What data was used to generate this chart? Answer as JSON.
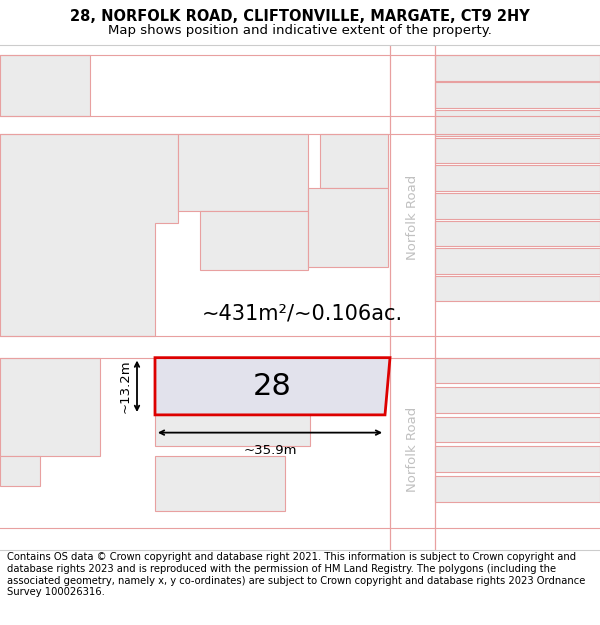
{
  "title_line1": "28, NORFOLK ROAD, CLIFTONVILLE, MARGATE, CT9 2HY",
  "title_line2": "Map shows position and indicative extent of the property.",
  "footer_text": "Contains OS data © Crown copyright and database right 2021. This information is subject to Crown copyright and database rights 2023 and is reproduced with the permission of HM Land Registry. The polygons (including the associated geometry, namely x, y co-ordinates) are subject to Crown copyright and database rights 2023 Ordnance Survey 100026316.",
  "bg_color": "#f2f2f2",
  "road_color": "#ffffff",
  "building_fill": "#ebebeb",
  "building_outline": "#e8a0a0",
  "highlight_fill": "#e2e2ec",
  "highlight_outline": "#dd0000",
  "area_text": "~431m²/~0.106ac.",
  "label_28": "28",
  "dim_width": "~35.9m",
  "dim_height": "~13.2m",
  "norfolk_road_text": "Norfolk Road",
  "road_label_color": "#c0c0c0",
  "title_fontsize": 10.5,
  "subtitle_fontsize": 9.5,
  "footer_fontsize": 7.2,
  "area_fontsize": 15,
  "label_fontsize": 22,
  "dim_fontsize": 9.5
}
